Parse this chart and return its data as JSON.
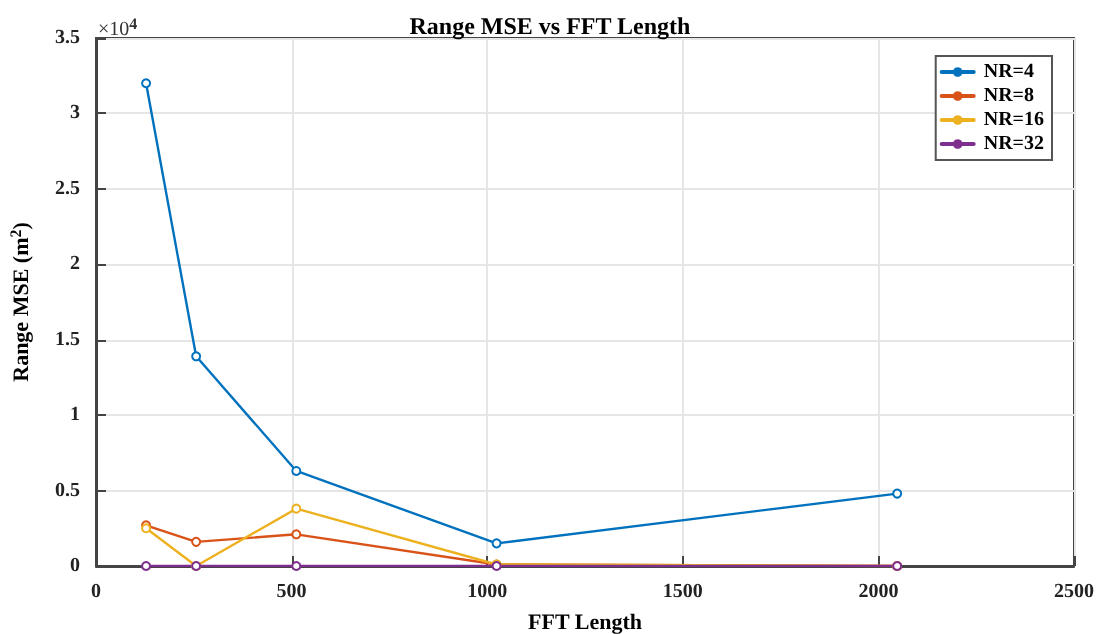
{
  "chart_data": {
    "type": "line",
    "title": "Range MSE vs FFT Length",
    "xlabel": "FFT Length",
    "ylabel": "Range MSE (m$^{2}$)",
    "annotations": [
      "×10$^{4}$"
    ],
    "x": [
      128,
      256,
      512,
      1024,
      2048
    ],
    "series": [
      {
        "name": "NR=4",
        "color": "#0072bd",
        "values": [
          3.2,
          1.39,
          0.63,
          0.15,
          0.48
        ]
      },
      {
        "name": "NR=8",
        "color": "#d95319",
        "values": [
          0.27,
          0.16,
          0.21,
          0.01,
          0
        ]
      },
      {
        "name": "NR=16",
        "color": "#edb120",
        "values": [
          0.25,
          0,
          0.38,
          0.01,
          0
        ]
      },
      {
        "name": "NR=32",
        "color": "#7e2f8e",
        "values": [
          0,
          0,
          0,
          0,
          0
        ]
      }
    ],
    "xlim": [
      0,
      2500
    ],
    "xticks": [
      0,
      500,
      1000,
      1500,
      2000,
      2500
    ],
    "ylim": [
      0,
      3.5
    ],
    "yticks": [
      0,
      0.5,
      1,
      1.5,
      2,
      2.5,
      3,
      3.5
    ],
    "grid": true,
    "legend": "top right",
    "marker": "circle",
    "line_style": "solid"
  }
}
